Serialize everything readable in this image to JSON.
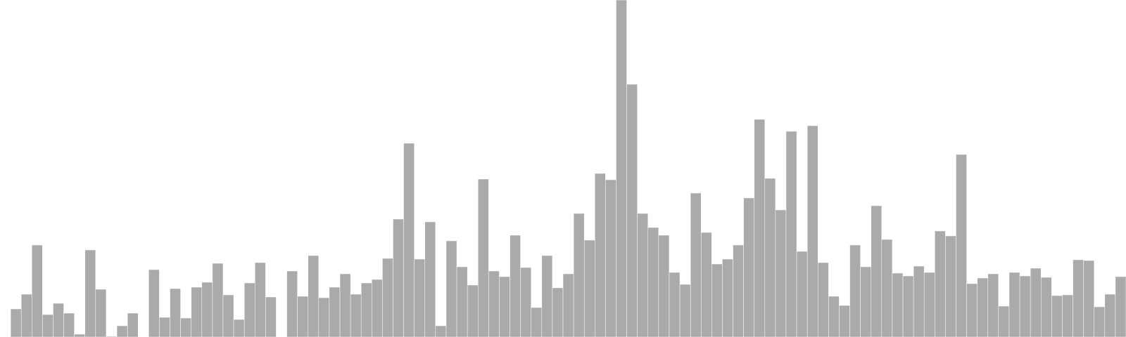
{
  "colors": {
    "background": "#ffffff",
    "bar": "#aaaaaa"
  },
  "chart_data": {
    "type": "bar",
    "ylim": [
      0,
      480
    ],
    "grid": false,
    "values": [
      0,
      40,
      61,
      131,
      32,
      48,
      34,
      4,
      124,
      68,
      1,
      16,
      34,
      0,
      96,
      28,
      69,
      27,
      71,
      78,
      105,
      60,
      25,
      77,
      106,
      57,
      0,
      94,
      58,
      116,
      56,
      71,
      90,
      61,
      77,
      82,
      112,
      168,
      276,
      111,
      164,
      16,
      137,
      100,
      74,
      225,
      94,
      86,
      145,
      99,
      42,
      116,
      70,
      90,
      176,
      138,
      233,
      224,
      480,
      360,
      176,
      156,
      145,
      92,
      75,
      205,
      149,
      104,
      111,
      131,
      198,
      310,
      226,
      181,
      293,
      122,
      301,
      106,
      58,
      45,
      131,
      100,
      187,
      139,
      91,
      87,
      101,
      92,
      151,
      144,
      260,
      76,
      84,
      90,
      44,
      92,
      87,
      98,
      85,
      59,
      60,
      110,
      109,
      43,
      61,
      86
    ]
  }
}
